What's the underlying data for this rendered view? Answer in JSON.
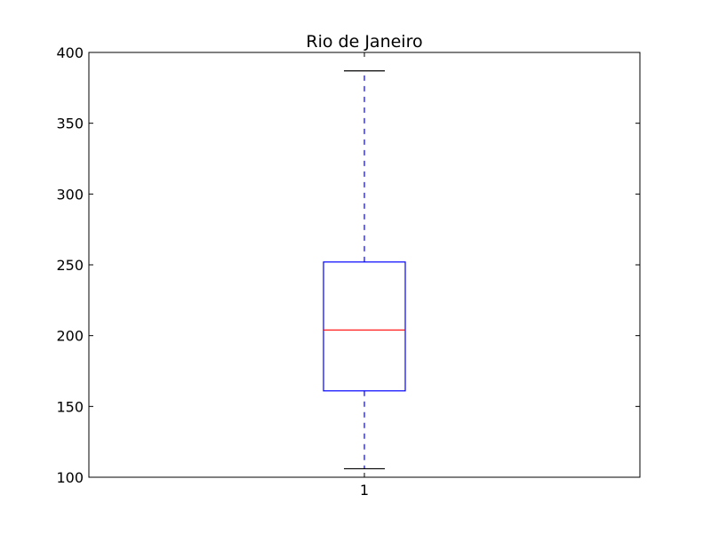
{
  "chart_data": {
    "type": "box",
    "title": "Rio de Janeiro",
    "xlabel": "",
    "ylabel": "",
    "categories": [
      "1"
    ],
    "ylim": [
      100,
      400
    ],
    "yticks": [
      100,
      150,
      200,
      250,
      300,
      350,
      400
    ],
    "grid": false,
    "boxes": [
      {
        "label": "1",
        "whisker_low": 106,
        "q1": 161,
        "median": 204,
        "q3": 252,
        "whisker_high": 387
      }
    ],
    "colors": {
      "box": "#0000ff",
      "median": "#ff0000",
      "whisker": "#0000ff",
      "cap": "#000000",
      "axes": "#000000"
    }
  }
}
